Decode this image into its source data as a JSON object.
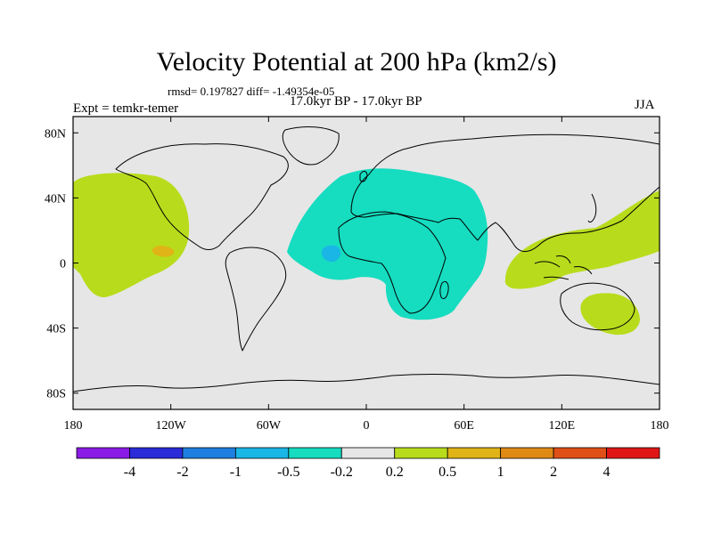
{
  "title": "Velocity Potential at 200 hPa (km2/s)",
  "stats_line": "rmsd= 0.197827 diff= -1.49354e-05",
  "period_line": "17.0kyr BP - 17.0kyr BP",
  "experiment": "Expt = temkr-temer",
  "season": "JJA",
  "map": {
    "background_color": "#e6e6e6",
    "lat_ticks": [
      "80N",
      "40N",
      "0",
      "40S",
      "80S"
    ],
    "lon_ticks": [
      "180",
      "120W",
      "60W",
      "0",
      "60E",
      "120E",
      "180"
    ]
  },
  "colorbar": {
    "colors": [
      "#8a1ae6",
      "#2b2bd9",
      "#1f7fe0",
      "#19b6e6",
      "#16dcc0",
      "#e6e6e6",
      "#b8dc1c",
      "#e0b416",
      "#e08a16",
      "#e05016",
      "#e01616"
    ],
    "labels": [
      "-4",
      "-2",
      "-1",
      "-0.5",
      "-0.2",
      "0.2",
      "0.5",
      "1",
      "2",
      "4"
    ]
  },
  "regions": [
    {
      "name": "pacific-positive-anomaly",
      "color": "#b8dc1c"
    },
    {
      "name": "pacific-orange-core",
      "color": "#e0b416"
    },
    {
      "name": "africa-negative-anomaly",
      "color": "#16dcc0"
    },
    {
      "name": "atlantic-blue-core",
      "color": "#19b6e6"
    },
    {
      "name": "indonesia-positive-anomaly",
      "color": "#b8dc1c"
    },
    {
      "name": "australia-positive-anomaly",
      "color": "#b8dc1c"
    }
  ]
}
